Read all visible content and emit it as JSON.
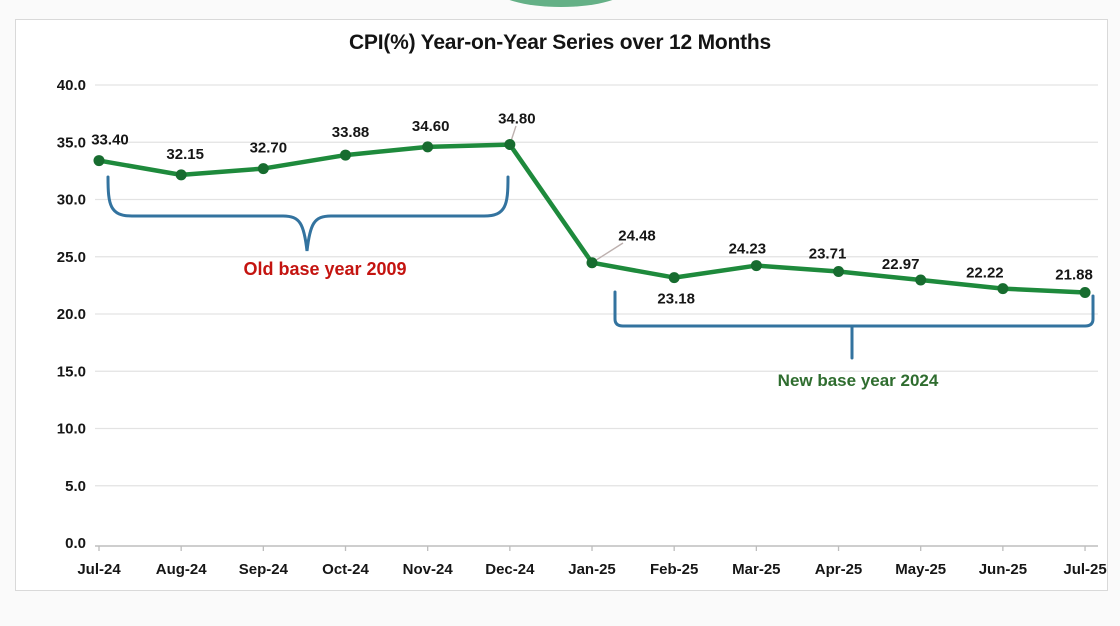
{
  "title": "CPI(%) Year-on-Year Series over 12 Months",
  "annotations": {
    "old_base": {
      "label": "Old base year 2009",
      "color": "#c41410"
    },
    "new_base": {
      "label": "New base year 2024",
      "color": "#2f6d2f"
    }
  },
  "chart_data": {
    "type": "line",
    "title": "CPI(%) Year-on-Year Series over 12 Months",
    "categories": [
      "Jul-24",
      "Aug-24",
      "Sep-24",
      "Oct-24",
      "Nov-24",
      "Dec-24",
      "Jan-25",
      "Feb-25",
      "Mar-25",
      "Apr-25",
      "May-25",
      "Jun-25",
      "Jul-25"
    ],
    "series": [
      {
        "name": "CPI(%) Year-on-Year",
        "values": [
          33.4,
          32.15,
          32.7,
          33.88,
          34.6,
          34.8,
          24.48,
          23.18,
          24.23,
          23.71,
          22.97,
          22.22,
          21.88
        ],
        "value_labels": [
          "33.40",
          "32.15",
          "32.70",
          "33.88",
          "34.60",
          "34.80",
          "24.48",
          "23.18",
          "24.23",
          "23.71",
          "22.97",
          "22.22",
          "21.88"
        ]
      }
    ],
    "ylim": [
      0,
      40
    ],
    "ytick_step": 5,
    "ytick_labels": [
      "0.0",
      "5.0",
      "10.0",
      "15.0",
      "20.0",
      "25.0",
      "30.0",
      "35.0",
      "40.0"
    ],
    "grid": "horizontal",
    "legend": "none",
    "line_color": "#1e8a3c",
    "marker_color": "#176c2f",
    "grid_color": "#e3e3e3",
    "axis_color": "#bdbdbd",
    "label_color": "#161616",
    "brace_color": "#33739f"
  }
}
